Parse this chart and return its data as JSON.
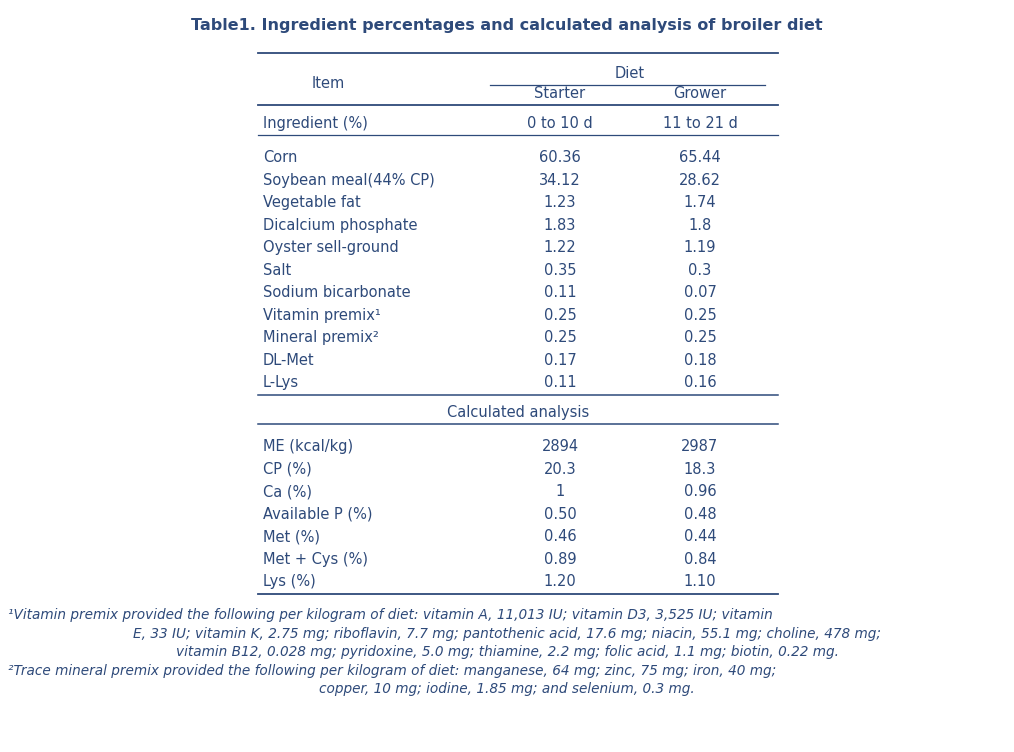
{
  "title": "Table1. Ingredient percentages and calculated analysis of broiler diet",
  "title_fontsize": 11.5,
  "col_header_1": "Item",
  "col_header_diet": "Diet",
  "col_header_starter": "Starter",
  "col_header_grower": "Grower",
  "col_header_starter_sub": "0 to 10 d",
  "col_header_grower_sub": "11 to 21 d",
  "section1_label": "Ingredient (%)",
  "rows_ingredient": [
    [
      "Corn",
      "60.36",
      "65.44"
    ],
    [
      "Soybean meal(44% CP)",
      "34.12",
      "28.62"
    ],
    [
      "Vegetable fat",
      "1.23",
      "1.74"
    ],
    [
      "Dicalcium phosphate",
      "1.83",
      "1.8"
    ],
    [
      "Oyster sell-ground",
      "1.22",
      "1.19"
    ],
    [
      "Salt",
      "0.35",
      "0.3"
    ],
    [
      "Sodium bicarbonate",
      "0.11",
      "0.07"
    ],
    [
      "Vitamin premix¹",
      "0.25",
      "0.25"
    ],
    [
      "Mineral premix²",
      "0.25",
      "0.25"
    ],
    [
      "DL-Met",
      "0.17",
      "0.18"
    ],
    [
      "L-Lys",
      "0.11",
      "0.16"
    ]
  ],
  "section2_label": "Calculated analysis",
  "rows_calculated": [
    [
      "ME (kcal/kg)",
      "2894",
      "2987"
    ],
    [
      "CP (%)",
      "20.3",
      "18.3"
    ],
    [
      "Ca (%)",
      "1",
      "0.96"
    ],
    [
      "Available P (%)",
      "0.50",
      "0.48"
    ],
    [
      "Met (%)",
      "0.46",
      "0.44"
    ],
    [
      "Met + Cys (%)",
      "0.89",
      "0.84"
    ],
    [
      "Lys (%)",
      "1.20",
      "1.10"
    ]
  ],
  "footnote1_line1": "¹Vitamin premix provided the following per kilogram of diet: vitamin A, 11,013 IU; vitamin D3, 3,525 IU; vitamin",
  "footnote1_line2": "E, 33 IU; vitamin K, 2.75 mg; riboflavin, 7.7 mg; pantothenic acid, 17.6 mg; niacin, 55.1 mg; choline, 478 mg;",
  "footnote1_line3": "vitamin B12, 0.028 mg; pyridoxine, 5.0 mg; thiamine, 2.2 mg; folic acid, 1.1 mg; biotin, 0.22 mg.",
  "footnote2_line1": "²Trace mineral premix provided the following per kilogram of diet: manganese, 64 mg; zinc, 75 mg; iron, 40 mg;",
  "footnote2_line2": "copper, 10 mg; iodine, 1.85 mg; and selenium, 0.3 mg.",
  "text_color": "#2e4a7a",
  "line_color": "#2e4a7a",
  "bg_color": "#ffffff",
  "font_size": 10.5,
  "footnote_font_size": 9.8
}
